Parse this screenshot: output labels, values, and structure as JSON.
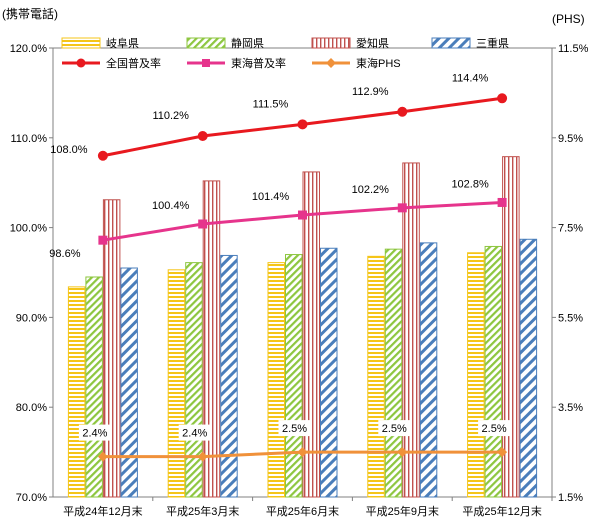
{
  "chart_data": {
    "type": "bar",
    "left_axis_title": "(携帯電話)",
    "right_axis_title": "(PHS)",
    "categories": [
      "平成24年12月末",
      "平成25年3月末",
      "平成25年6月末",
      "平成25年9月末",
      "平成25年12月末"
    ],
    "left_ylim": [
      70,
      120
    ],
    "left_ticks": [
      70,
      80,
      90,
      100,
      110,
      120
    ],
    "left_tick_labels": [
      "70.0%",
      "80.0%",
      "90.0%",
      "100.0%",
      "110.0%",
      "120.0%"
    ],
    "right_ylim": [
      1.5,
      11.5
    ],
    "right_ticks": [
      1.5,
      3.5,
      5.5,
      7.5,
      9.5,
      11.5
    ],
    "right_tick_labels": [
      "1.5%",
      "3.5%",
      "5.5%",
      "7.5%",
      "9.5%",
      "11.5%"
    ],
    "bar_series": [
      {
        "name": "岐阜県",
        "values": [
          93.4,
          95.3,
          96.1,
          96.8,
          97.2
        ],
        "color": "#f5c518",
        "pattern": "horizontal"
      },
      {
        "name": "静岡県",
        "values": [
          94.5,
          96.1,
          97.0,
          97.6,
          97.9
        ],
        "color": "#8dc63f",
        "pattern": "diagonal"
      },
      {
        "name": "愛知県",
        "values": [
          103.1,
          105.2,
          106.2,
          107.2,
          107.9
        ],
        "color": "#c0504d",
        "pattern": "vertical"
      },
      {
        "name": "三重県",
        "values": [
          95.5,
          96.9,
          97.7,
          98.3,
          98.7
        ],
        "color": "#4a7ebb",
        "pattern": "diagonal-wide"
      }
    ],
    "line_series": [
      {
        "name": "全国普及率",
        "axis": "left",
        "values": [
          108.0,
          110.2,
          111.5,
          112.9,
          114.4
        ],
        "labels": [
          "108.0%",
          "110.2%",
          "111.5%",
          "112.9%",
          "114.4%"
        ],
        "color": "#e8191f",
        "marker": "circle"
      },
      {
        "name": "東海普及率",
        "axis": "left",
        "values": [
          98.6,
          100.4,
          101.4,
          102.2,
          102.8
        ],
        "labels": [
          "98.6%",
          "100.4%",
          "101.4%",
          "102.2%",
          "102.8%"
        ],
        "color": "#e6348c",
        "marker": "square"
      },
      {
        "name": "東海PHS",
        "axis": "right",
        "values": [
          2.4,
          2.4,
          2.5,
          2.5,
          2.5
        ],
        "labels": [
          "2.4%",
          "2.4%",
          "2.5%",
          "2.5%",
          "2.5%"
        ],
        "color": "#f0913a",
        "marker": "diamond"
      }
    ],
    "legend": "top",
    "grid": false
  }
}
